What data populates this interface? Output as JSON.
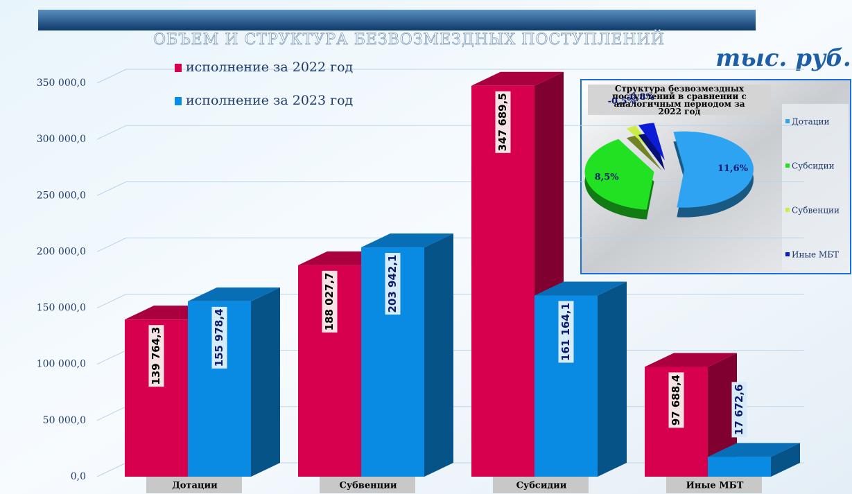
{
  "chart_data": [
    {
      "type": "bar3d",
      "title": "ОБЪЕМ И СТРУКТУРА БЕЗВОЗМЕЗДНЫХ ПОСТУПЛЕНИЙ",
      "unit": "тыс. руб.",
      "categories": [
        "Дотации",
        "Субвенции",
        "Субсидии",
        "Иные МБТ"
      ],
      "series": [
        {
          "name": "исполнение за  2022 год",
          "color": "#d6004f",
          "values": [
            139764.3,
            188027.7,
            347689.5,
            97688.4
          ],
          "value_labels": [
            "139 764,3",
            "188 027,7",
            "347 689,5",
            "97 688,4"
          ]
        },
        {
          "name": "исполнение за  2023 год",
          "color": "#0a8be3",
          "values": [
            155978.4,
            203942.1,
            161164.1,
            17672.6
          ],
          "value_labels": [
            "155 978,4",
            "203 942,1",
            "161 164,1",
            "17 672,6"
          ]
        }
      ],
      "ylim": [
        0,
        350000
      ],
      "yticks": [
        {
          "value": 0,
          "label": "0,0"
        },
        {
          "value": 50000,
          "label": "50 000,0"
        },
        {
          "value": 100000,
          "label": "100 000,0"
        },
        {
          "value": 150000,
          "label": "150 000,0"
        },
        {
          "value": 200000,
          "label": "200 000,0"
        },
        {
          "value": 250000,
          "label": "250 000,0"
        },
        {
          "value": 300000,
          "label": "300 000,0"
        },
        {
          "value": 350000,
          "label": "350 000,0"
        }
      ],
      "grid": true
    },
    {
      "type": "pie",
      "title": "Структура безвозмездных поступлений в сравнении с аналогичным периодом за 2022 год",
      "categories": [
        "Дотации",
        "Субсидии",
        "Субвенции",
        "Иные МБТ"
      ],
      "values": [
        11.6,
        8.5,
        -0.5,
        -0.8
      ],
      "value_labels": [
        "11,6%",
        "8,5%",
        "-0,5%",
        "-0,8%"
      ],
      "colors": [
        "#2ea3f2",
        "#22e022",
        "#ccee44",
        "#0b1bd6"
      ]
    }
  ]
}
